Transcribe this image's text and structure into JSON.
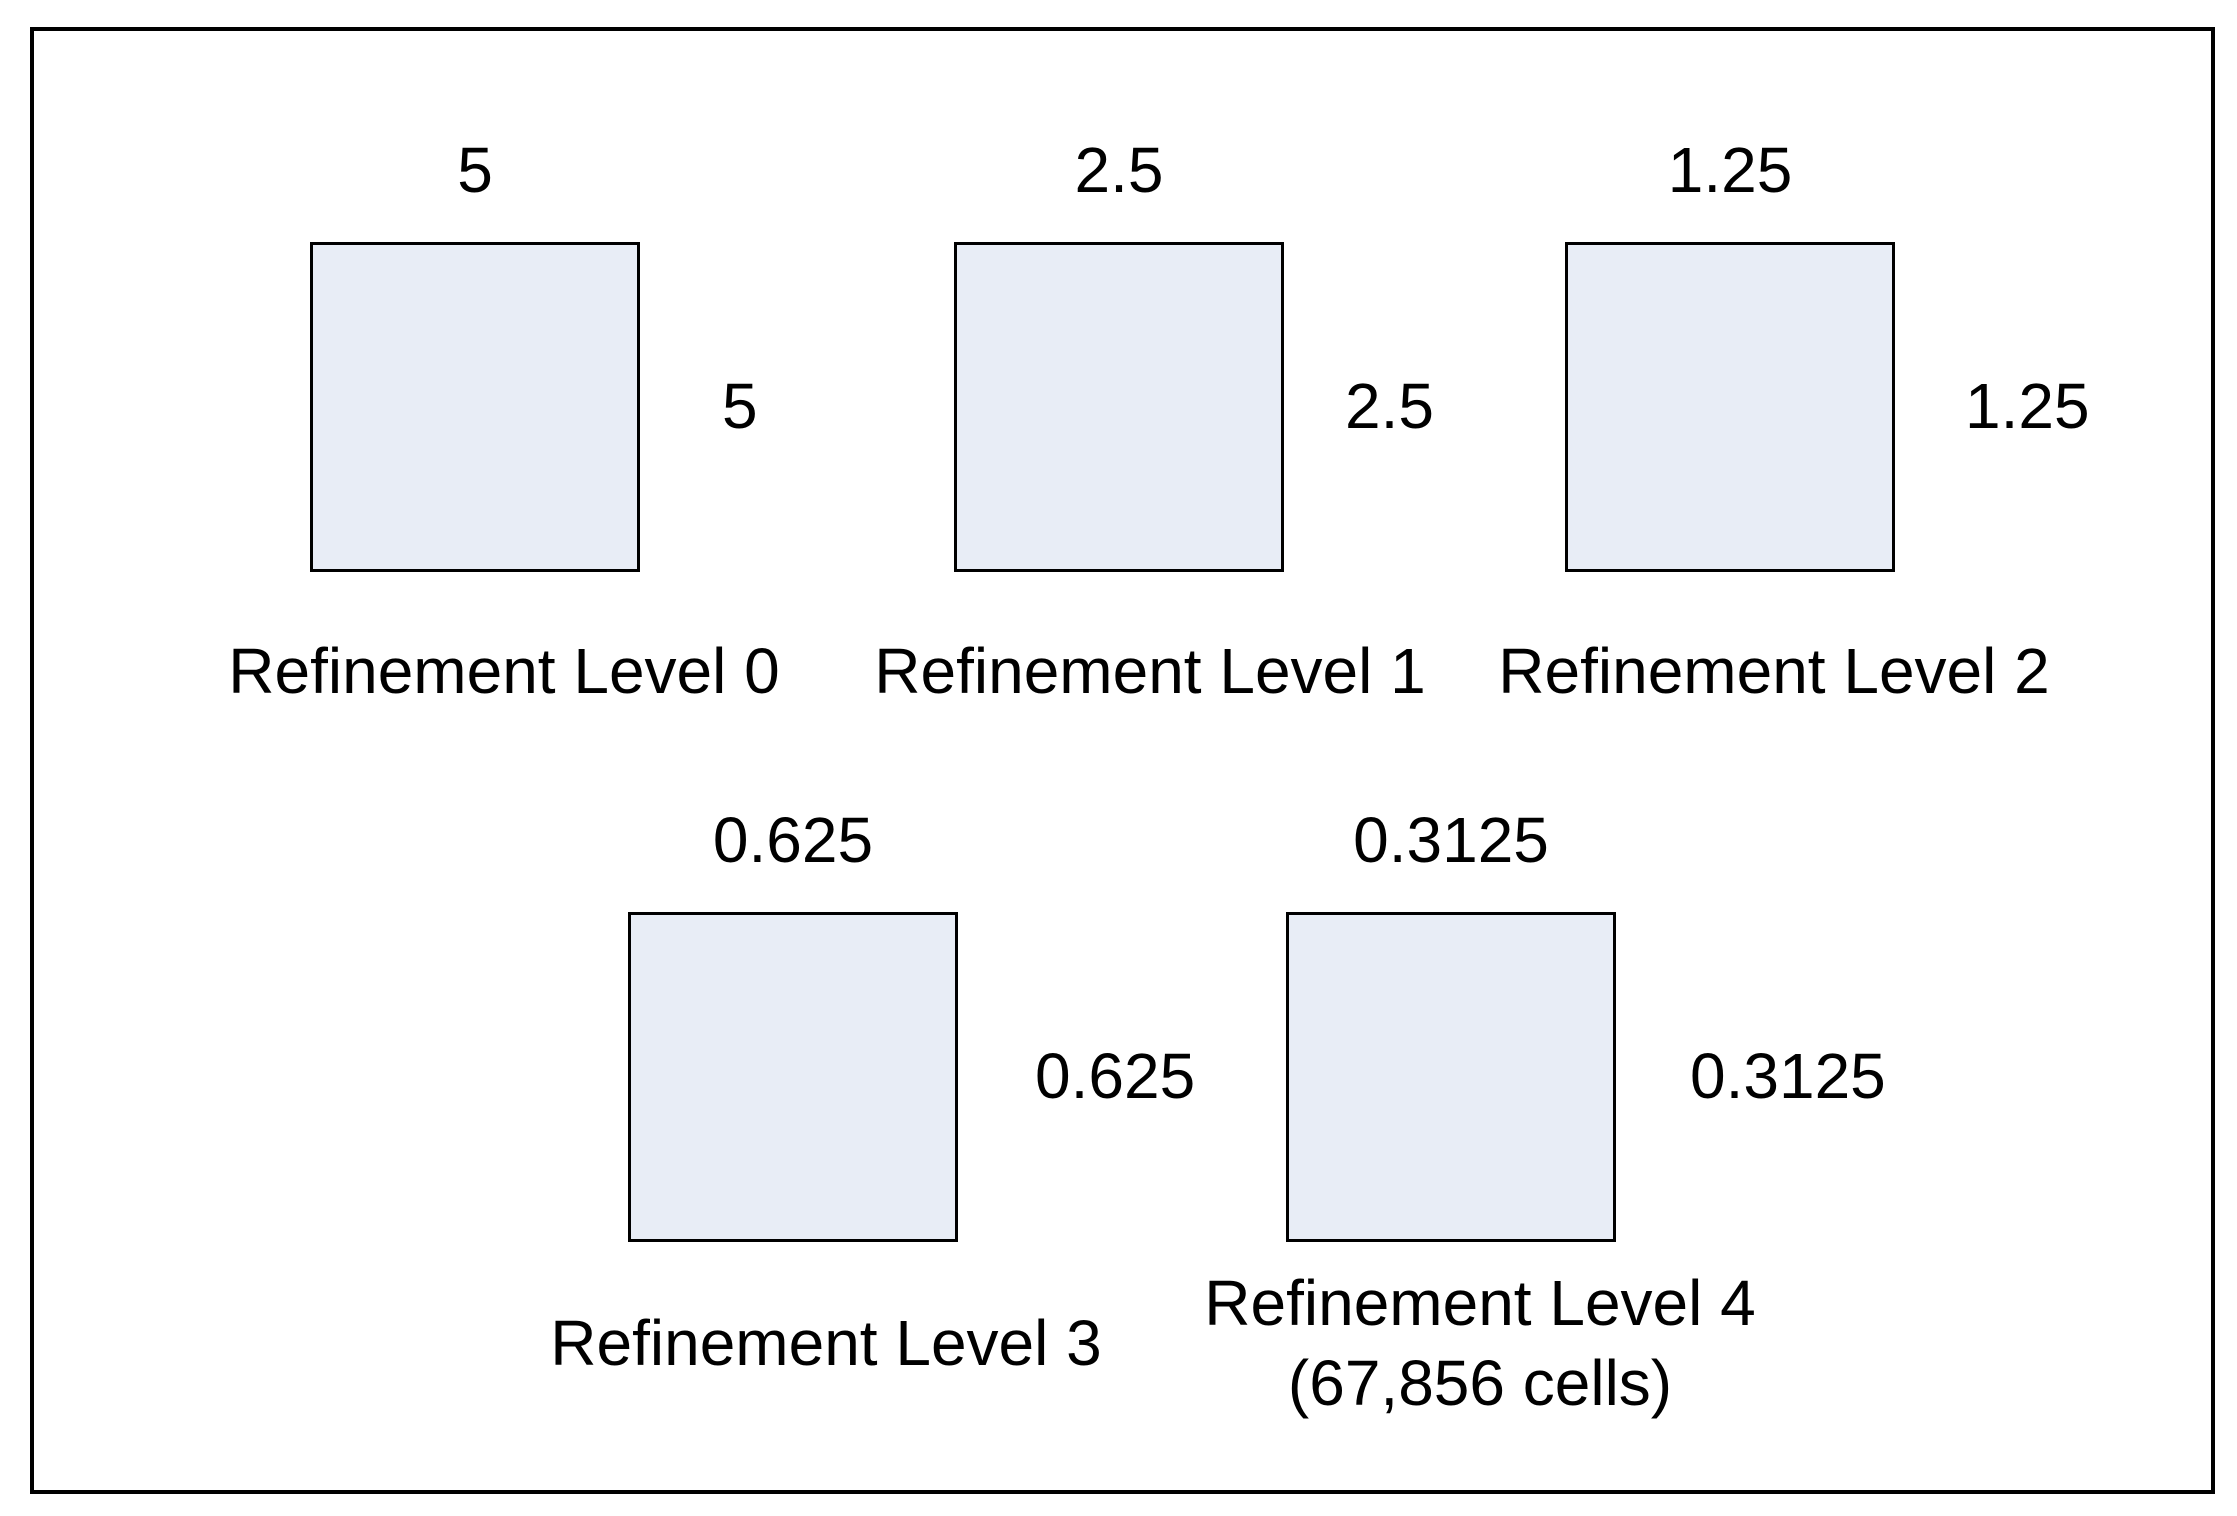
{
  "figure": {
    "colors": {
      "background": "#FFFFFF",
      "square_fill": "#E8EDF6",
      "square_border": "#000000",
      "frame_border": "#000000",
      "text": "#000000"
    },
    "squares": [
      {
        "label": "Refinement Level 0",
        "sublabel": "",
        "top_dim": "5",
        "side_dim": "5"
      },
      {
        "label": "Refinement Level 1",
        "sublabel": "",
        "top_dim": "2.5",
        "side_dim": "2.5"
      },
      {
        "label": "Refinement Level 2",
        "sublabel": "",
        "top_dim": "1.25",
        "side_dim": "1.25"
      },
      {
        "label": "Refinement Level 3",
        "sublabel": "",
        "top_dim": "0.625",
        "side_dim": "0.625"
      },
      {
        "label": "Refinement Level 4",
        "sublabel": "(67,856 cells)",
        "top_dim": "0.3125",
        "side_dim": "0.3125"
      }
    ]
  }
}
